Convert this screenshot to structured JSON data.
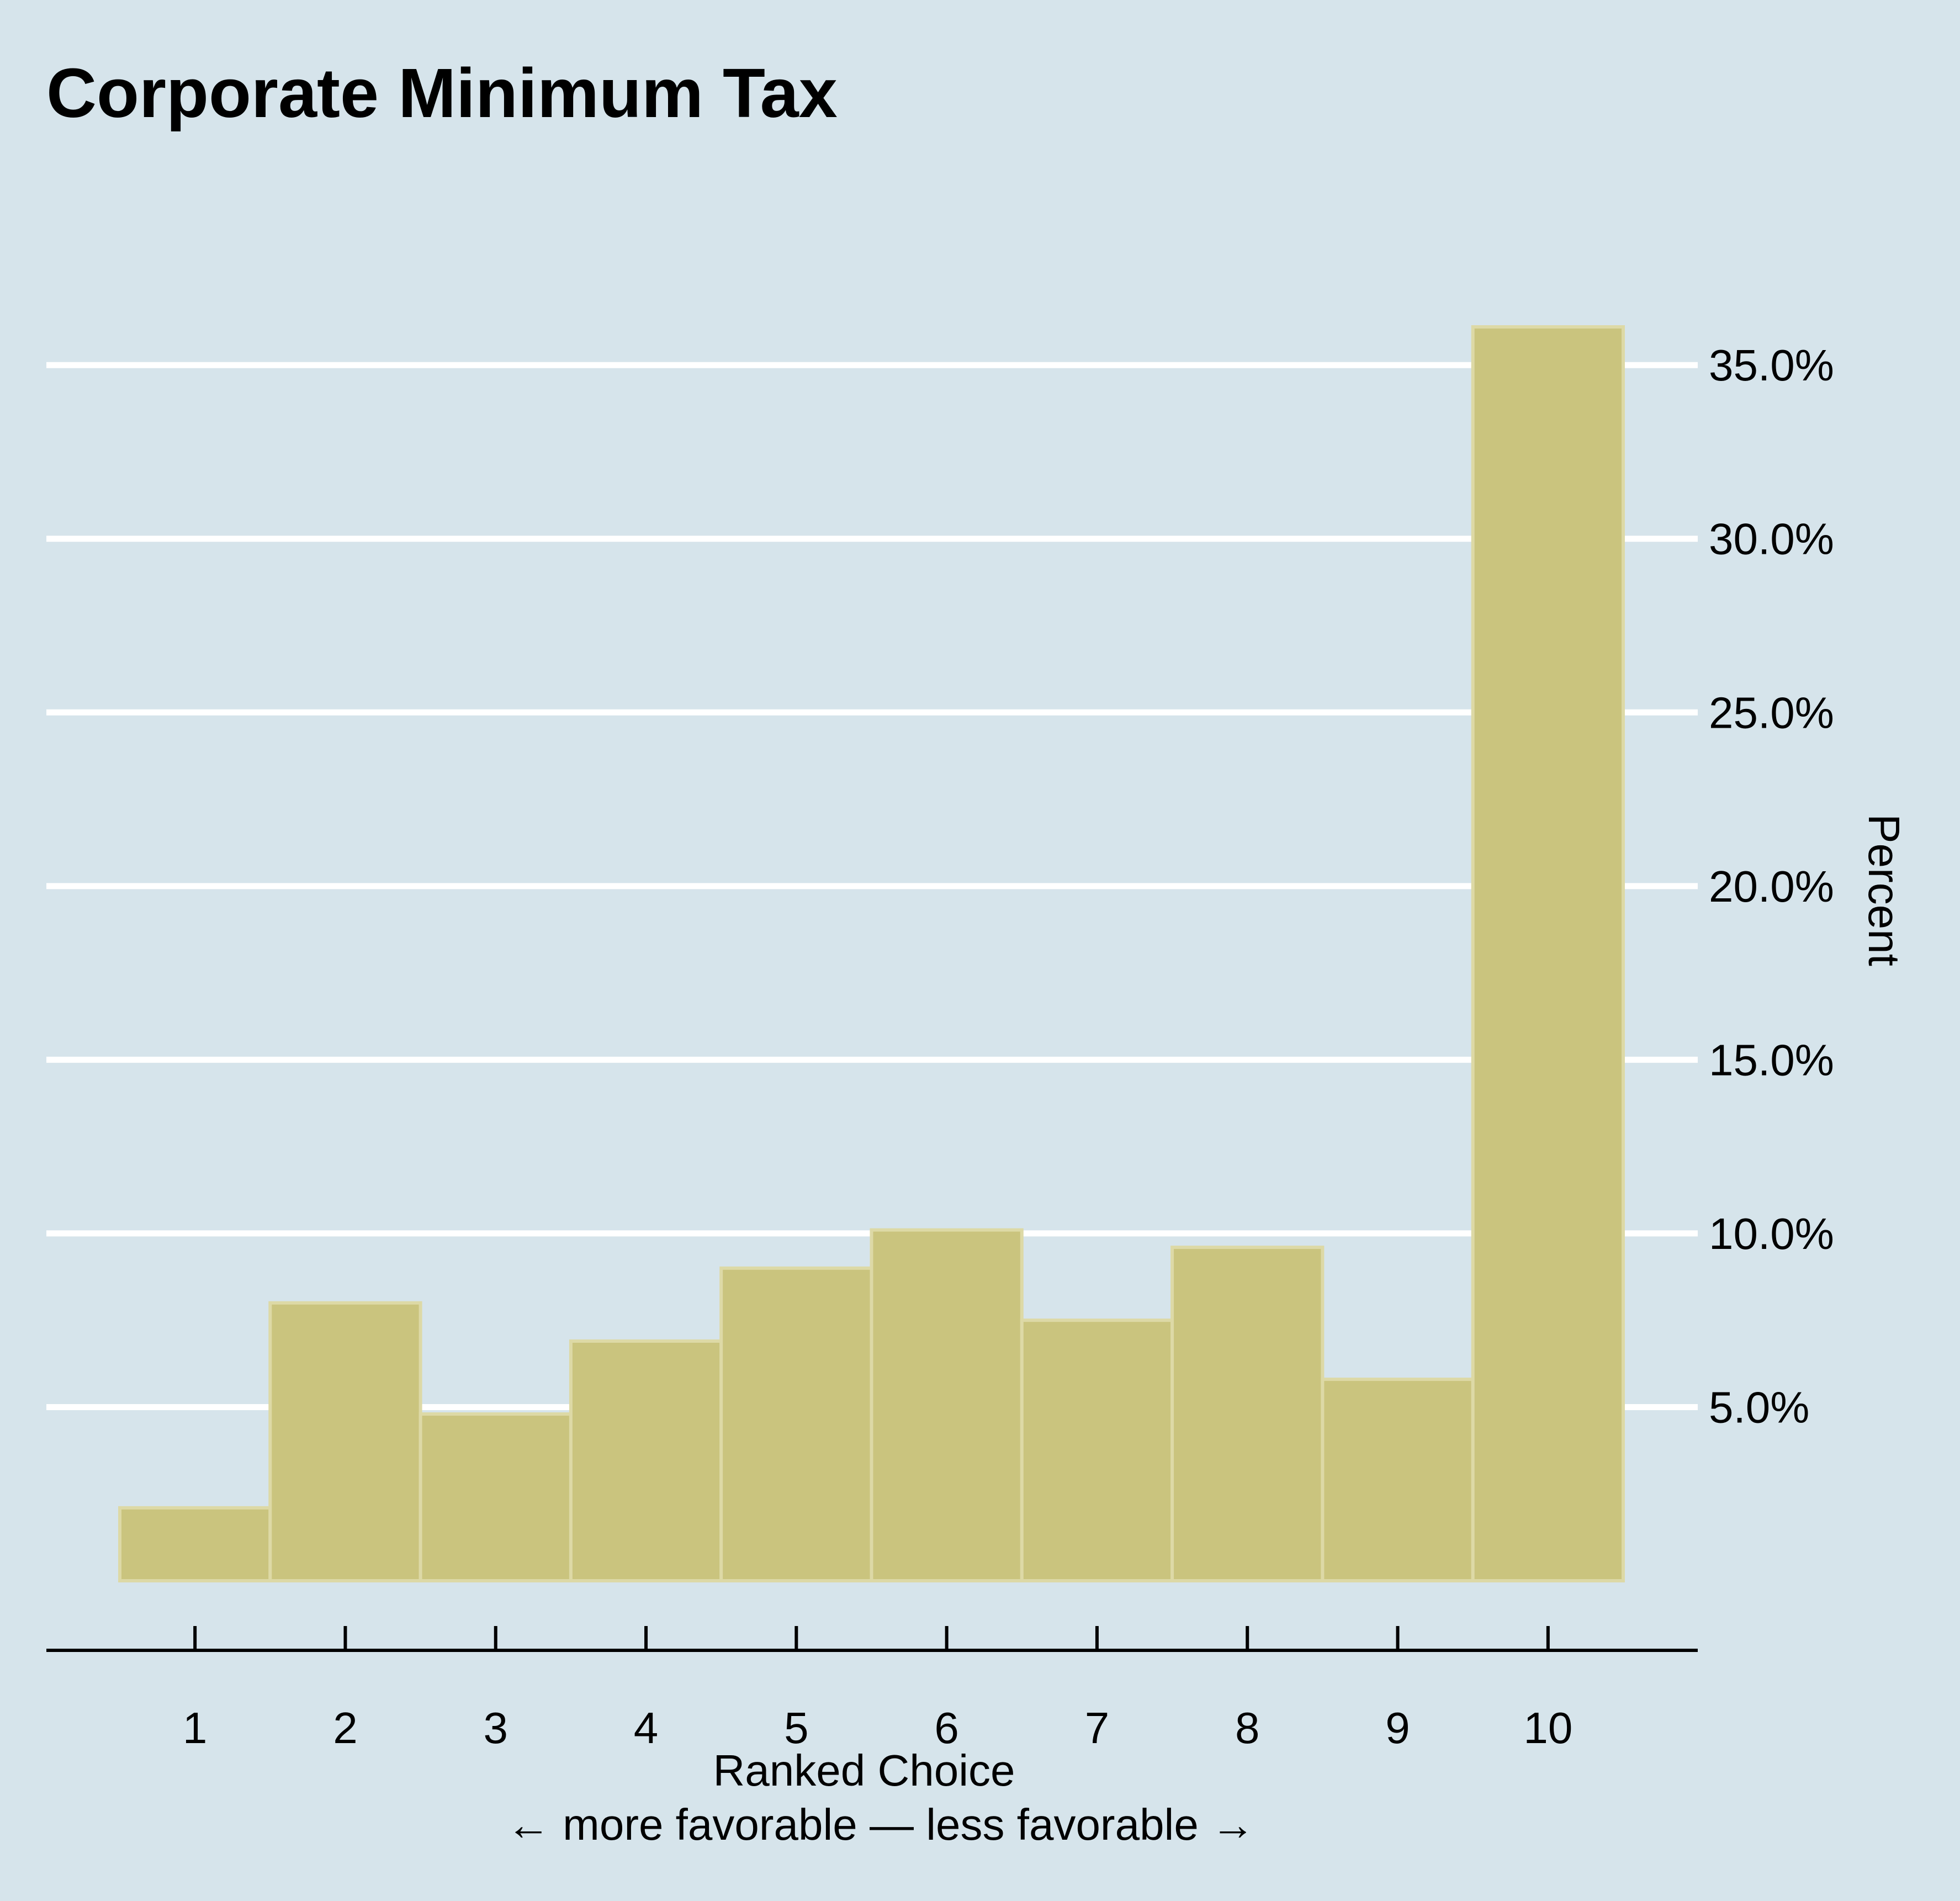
{
  "chart_data": {
    "type": "bar",
    "title": "Corporate Minimum Tax",
    "xlabel": "Ranked Choice",
    "xlabel_sub": "← more favorable — less favorable →",
    "ylabel": "Percent",
    "categories": [
      "1",
      "2",
      "3",
      "4",
      "5",
      "6",
      "7",
      "8",
      "9",
      "10"
    ],
    "values": [
      2.1,
      8.0,
      4.8,
      6.9,
      9.0,
      10.1,
      7.5,
      9.6,
      5.8,
      36.1
    ],
    "y_ticks": [
      5,
      10,
      15,
      20,
      25,
      30,
      35
    ],
    "y_tick_labels": [
      "5.0%",
      "10.0%",
      "15.0%",
      "20.0%",
      "25.0%",
      "30.0%",
      "35.0%"
    ],
    "ylim": [
      0,
      36.1
    ],
    "y_axis_position": "right",
    "grid": true,
    "legend": "none",
    "colors": {
      "background": "#d6e4eb",
      "bar_fill": "#cac47e",
      "bar_edge": "#ddd9a6",
      "grid": "#ffffff"
    }
  }
}
